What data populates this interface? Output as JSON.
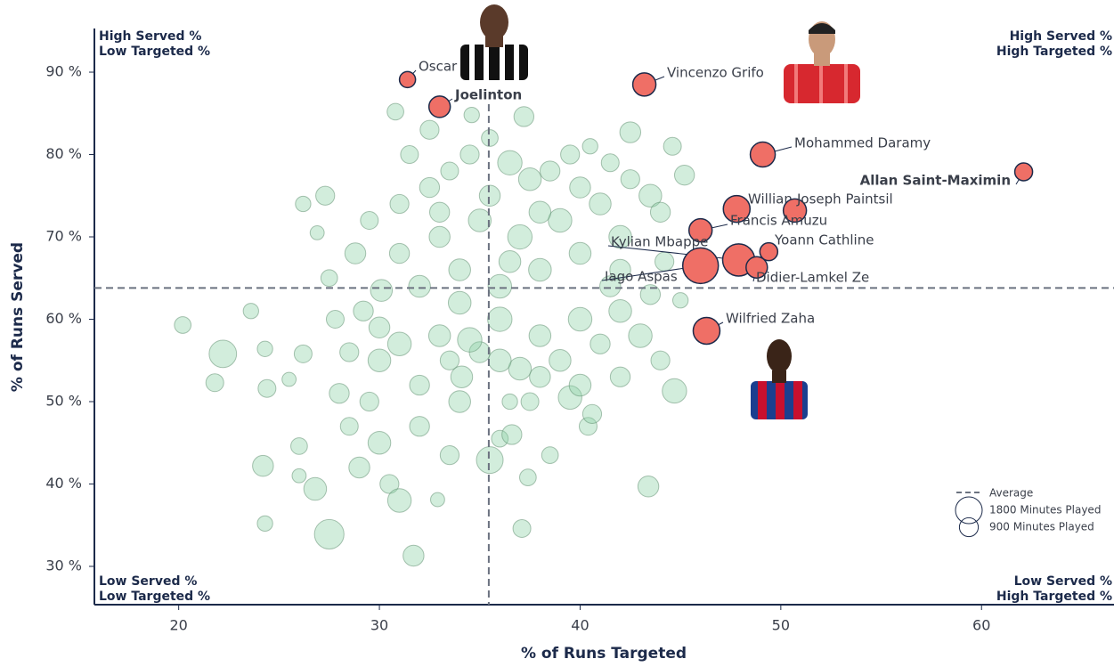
{
  "chart_data": {
    "type": "bubble",
    "xlabel": "% of Runs Targeted",
    "ylabel": "% of Runs Served",
    "xlim": [
      15.8,
      66.6
    ],
    "ylim": [
      25.35,
      95.3
    ],
    "xticks": [
      20,
      30,
      40,
      50,
      60
    ],
    "yticks": [
      {
        "value": 30,
        "label": "30 %"
      },
      {
        "value": 40,
        "label": "40 %"
      },
      {
        "value": 50,
        "label": "50 %"
      },
      {
        "value": 60,
        "label": "60 %"
      },
      {
        "value": 70,
        "label": "70 %"
      },
      {
        "value": 80,
        "label": "80 %"
      },
      {
        "value": 90,
        "label": "90 %"
      }
    ],
    "average": {
      "label": "Average",
      "x": 35.45,
      "y": 63.8,
      "color": "#6b7280"
    },
    "size_legend": [
      {
        "value": 1800,
        "label": "1800 Minutes Played"
      },
      {
        "value": 900,
        "label": "900 Minutes Played"
      }
    ],
    "quadrants": {
      "top_left": [
        "High Served %",
        "Low Targeted %"
      ],
      "top_right": [
        "High Served %",
        "High Targeted %"
      ],
      "bottom_left": [
        "Low Served %",
        "Low Targeted %"
      ],
      "bottom_right": [
        "Low Served %",
        "High Targeted %"
      ]
    },
    "point_color": "#8fd1a8",
    "highlight_color": "#ef6f66",
    "points": [
      [
        20.2,
        59.3,
        700
      ],
      [
        22.2,
        55.8,
        1900
      ],
      [
        21.8,
        52.3,
        800
      ],
      [
        24.3,
        56.4,
        600
      ],
      [
        24.4,
        51.6,
        800
      ],
      [
        24.2,
        42.2,
        1100
      ],
      [
        24.3,
        35.2,
        600
      ],
      [
        23.6,
        61,
        600
      ],
      [
        27.5,
        33.9,
        2200
      ],
      [
        26.2,
        74,
        600
      ],
      [
        26.9,
        70.5,
        500
      ],
      [
        27.3,
        75,
        900
      ],
      [
        30.8,
        85.2,
        700
      ],
      [
        31.7,
        31.3,
        1100
      ],
      [
        37.1,
        34.6,
        800
      ],
      [
        37.4,
        40.8,
        700
      ],
      [
        43.4,
        39.7,
        1100
      ],
      [
        44.7,
        51.3,
        1500
      ],
      [
        45,
        62.3,
        600
      ],
      [
        44.6,
        81,
        800
      ],
      [
        45.2,
        77.5,
        1000
      ],
      [
        42.5,
        82.7,
        1100
      ],
      [
        37.2,
        84.6,
        1000
      ],
      [
        34.6,
        84.8,
        600
      ],
      [
        32.5,
        83,
        900
      ],
      [
        26.8,
        39.4,
        1300
      ],
      [
        26,
        41,
        500
      ],
      [
        26,
        44.6,
        700
      ],
      [
        25.5,
        52.7,
        500
      ],
      [
        26.2,
        55.8,
        800
      ],
      [
        32.9,
        38.1,
        500
      ],
      [
        35.5,
        42.9,
        1800
      ],
      [
        36,
        45.5,
        700
      ],
      [
        36.6,
        46,
        1000
      ],
      [
        40.4,
        47,
        800
      ],
      [
        40.6,
        48.5,
        900
      ],
      [
        39.5,
        50.5,
        1400
      ],
      [
        36.5,
        50,
        600
      ],
      [
        37.5,
        50,
        800
      ],
      [
        34.1,
        53,
        1200
      ],
      [
        33.5,
        55,
        900
      ],
      [
        32,
        52,
        1000
      ],
      [
        30,
        55,
        1300
      ],
      [
        28.5,
        56,
        900
      ],
      [
        29.2,
        61,
        1000
      ],
      [
        30.1,
        63.5,
        1200
      ],
      [
        27.5,
        65,
        700
      ],
      [
        28.8,
        68,
        1100
      ],
      [
        29.5,
        72,
        800
      ],
      [
        31,
        74,
        900
      ],
      [
        32.5,
        76,
        1000
      ],
      [
        33.5,
        78,
        800
      ],
      [
        34.5,
        80,
        900
      ],
      [
        35.5,
        82,
        700
      ],
      [
        36.5,
        79,
        1500
      ],
      [
        37.5,
        77,
        1300
      ],
      [
        38.5,
        78,
        1000
      ],
      [
        39.5,
        80,
        900
      ],
      [
        40.5,
        81,
        600
      ],
      [
        41.5,
        79,
        800
      ],
      [
        42.5,
        77,
        900
      ],
      [
        43.5,
        75,
        1300
      ],
      [
        44,
        73,
        1000
      ],
      [
        41,
        74,
        1200
      ],
      [
        39,
        72,
        1400
      ],
      [
        37,
        70,
        1500
      ],
      [
        35,
        72,
        1300
      ],
      [
        33,
        70,
        1100
      ],
      [
        31,
        68,
        1000
      ],
      [
        34,
        66,
        1200
      ],
      [
        36,
        64,
        1400
      ],
      [
        38,
        66,
        1300
      ],
      [
        40,
        68,
        1200
      ],
      [
        42,
        66,
        1100
      ],
      [
        43.5,
        63,
        1000
      ],
      [
        42,
        61,
        1300
      ],
      [
        40,
        60,
        1400
      ],
      [
        38,
        58,
        1200
      ],
      [
        36,
        60,
        1500
      ],
      [
        34,
        62,
        1300
      ],
      [
        32,
        64,
        1200
      ],
      [
        30,
        59,
        1100
      ],
      [
        31,
        57,
        1400
      ],
      [
        33,
        58,
        1200
      ],
      [
        35,
        56,
        1100
      ],
      [
        37,
        54,
        1300
      ],
      [
        39,
        55,
        1200
      ],
      [
        41,
        57,
        1000
      ],
      [
        43,
        58,
        1400
      ],
      [
        44,
        55,
        900
      ],
      [
        42,
        53,
        1000
      ],
      [
        40,
        52,
        1200
      ],
      [
        38,
        53,
        1100
      ],
      [
        36,
        55,
        1300
      ],
      [
        34,
        50,
        1200
      ],
      [
        32,
        47,
        1000
      ],
      [
        30,
        45,
        1300
      ],
      [
        29,
        42,
        1100
      ],
      [
        28.5,
        47,
        800
      ],
      [
        30.5,
        40,
        900
      ],
      [
        31,
        38,
        1400
      ],
      [
        33.5,
        43.5,
        900
      ],
      [
        27.8,
        60,
        800
      ],
      [
        28,
        51,
        1000
      ],
      [
        29.5,
        50,
        900
      ],
      [
        38.5,
        43.5,
        700
      ],
      [
        34.5,
        57.5,
        1500
      ],
      [
        36.5,
        67,
        1200
      ],
      [
        35.5,
        75,
        1100
      ],
      [
        33,
        73,
        1000
      ],
      [
        31.5,
        80,
        800
      ],
      [
        38,
        73,
        1200
      ],
      [
        40,
        76,
        1100
      ],
      [
        42,
        70,
        1300
      ],
      [
        44.2,
        67,
        900
      ],
      [
        41.5,
        64,
        1100
      ]
    ],
    "highlighted": [
      {
        "name": "Oscar",
        "x": 31.4,
        "y": 89.1,
        "size": 650
      },
      {
        "name": "Joelinton",
        "x": 33,
        "y": 85.8,
        "size": 1150
      },
      {
        "name": "Vincenzo Grifo",
        "x": 43.2,
        "y": 88.5,
        "size": 1350
      },
      {
        "name": "Mohammed Daramy",
        "x": 49.1,
        "y": 80,
        "size": 1570
      },
      {
        "name": "Allan Saint-Maximin",
        "x": 62.1,
        "y": 77.9,
        "size": 800
      },
      {
        "name": "Willian",
        "x": 47.8,
        "y": 73.4,
        "size": 1800
      },
      {
        "name": "Joseph Paintsil",
        "x": 50.7,
        "y": 73.2,
        "size": 1350
      },
      {
        "name": "Francis Amuzu",
        "x": 46,
        "y": 70.8,
        "size": 1350
      },
      {
        "name": "Kylian Mbappe",
        "x": 47.9,
        "y": 67.2,
        "size": 2600
      },
      {
        "name": "Yoann Cathline",
        "x": 49.4,
        "y": 68.2,
        "size": 800
      },
      {
        "name": "Didier-Lamkel Ze",
        "x": 48.8,
        "y": 66.3,
        "size": 1150
      },
      {
        "name": "Iago Aspas",
        "x": 46,
        "y": 66.5,
        "size": 3200
      },
      {
        "name": "Wilfried Zaha",
        "x": 46.3,
        "y": 58.6,
        "size": 1800
      }
    ]
  }
}
